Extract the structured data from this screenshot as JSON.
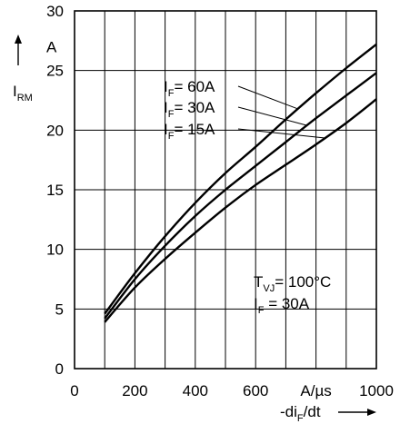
{
  "chart_data": {
    "type": "line",
    "xlim": [
      0,
      1000
    ],
    "ylim": [
      0,
      30
    ],
    "x_ticks": [
      "0",
      "200",
      "400",
      "600",
      "1000"
    ],
    "x_tick_values": [
      0,
      200,
      400,
      600,
      1000
    ],
    "x_unit_tick": {
      "text": "A/µs",
      "value": 800
    },
    "y_ticks": [
      "0",
      "5",
      "10",
      "15",
      "20",
      "25",
      "30"
    ],
    "y_tick_values": [
      0,
      5,
      10,
      15,
      20,
      25,
      30
    ],
    "y_unit": "A",
    "ylabel": {
      "main": "I",
      "sub": "RM"
    },
    "xlabel": {
      "prefix": "-di",
      "sub": "F",
      "suffix": "/dt"
    },
    "grid": true,
    "series": [
      {
        "name": "60A",
        "x": [
          100,
          200,
          300,
          400,
          500,
          600,
          700,
          800,
          900,
          1000
        ],
        "y": [
          4.6,
          8.0,
          11.1,
          13.9,
          16.4,
          18.6,
          20.9,
          23.1,
          25.2,
          27.2
        ]
      },
      {
        "name": "30A",
        "x": [
          100,
          200,
          300,
          400,
          500,
          600,
          700,
          800,
          900,
          1000
        ],
        "y": [
          4.2,
          7.5,
          10.3,
          12.8,
          15.0,
          17.0,
          19.0,
          21.0,
          22.9,
          24.8
        ]
      },
      {
        "name": "15A",
        "x": [
          100,
          200,
          300,
          400,
          500,
          600,
          700,
          800,
          900,
          1000
        ],
        "y": [
          3.9,
          6.8,
          9.2,
          11.4,
          13.5,
          15.4,
          17.1,
          18.8,
          20.6,
          22.6
        ]
      }
    ],
    "curve_labels": [
      {
        "series": "60A",
        "prefix": "I",
        "sub": "F",
        "text": "= 60A"
      },
      {
        "series": "30A",
        "prefix": "I",
        "sub": "F",
        "text": "= 30A"
      },
      {
        "series": "15A",
        "prefix": "I",
        "sub": "F",
        "text": "= 15A"
      }
    ],
    "conditions": [
      {
        "prefix": "T",
        "sub": "VJ",
        "text": "= 100°C"
      },
      {
        "prefix": "I",
        "sub": "F",
        "text": "  = 30A"
      }
    ]
  }
}
